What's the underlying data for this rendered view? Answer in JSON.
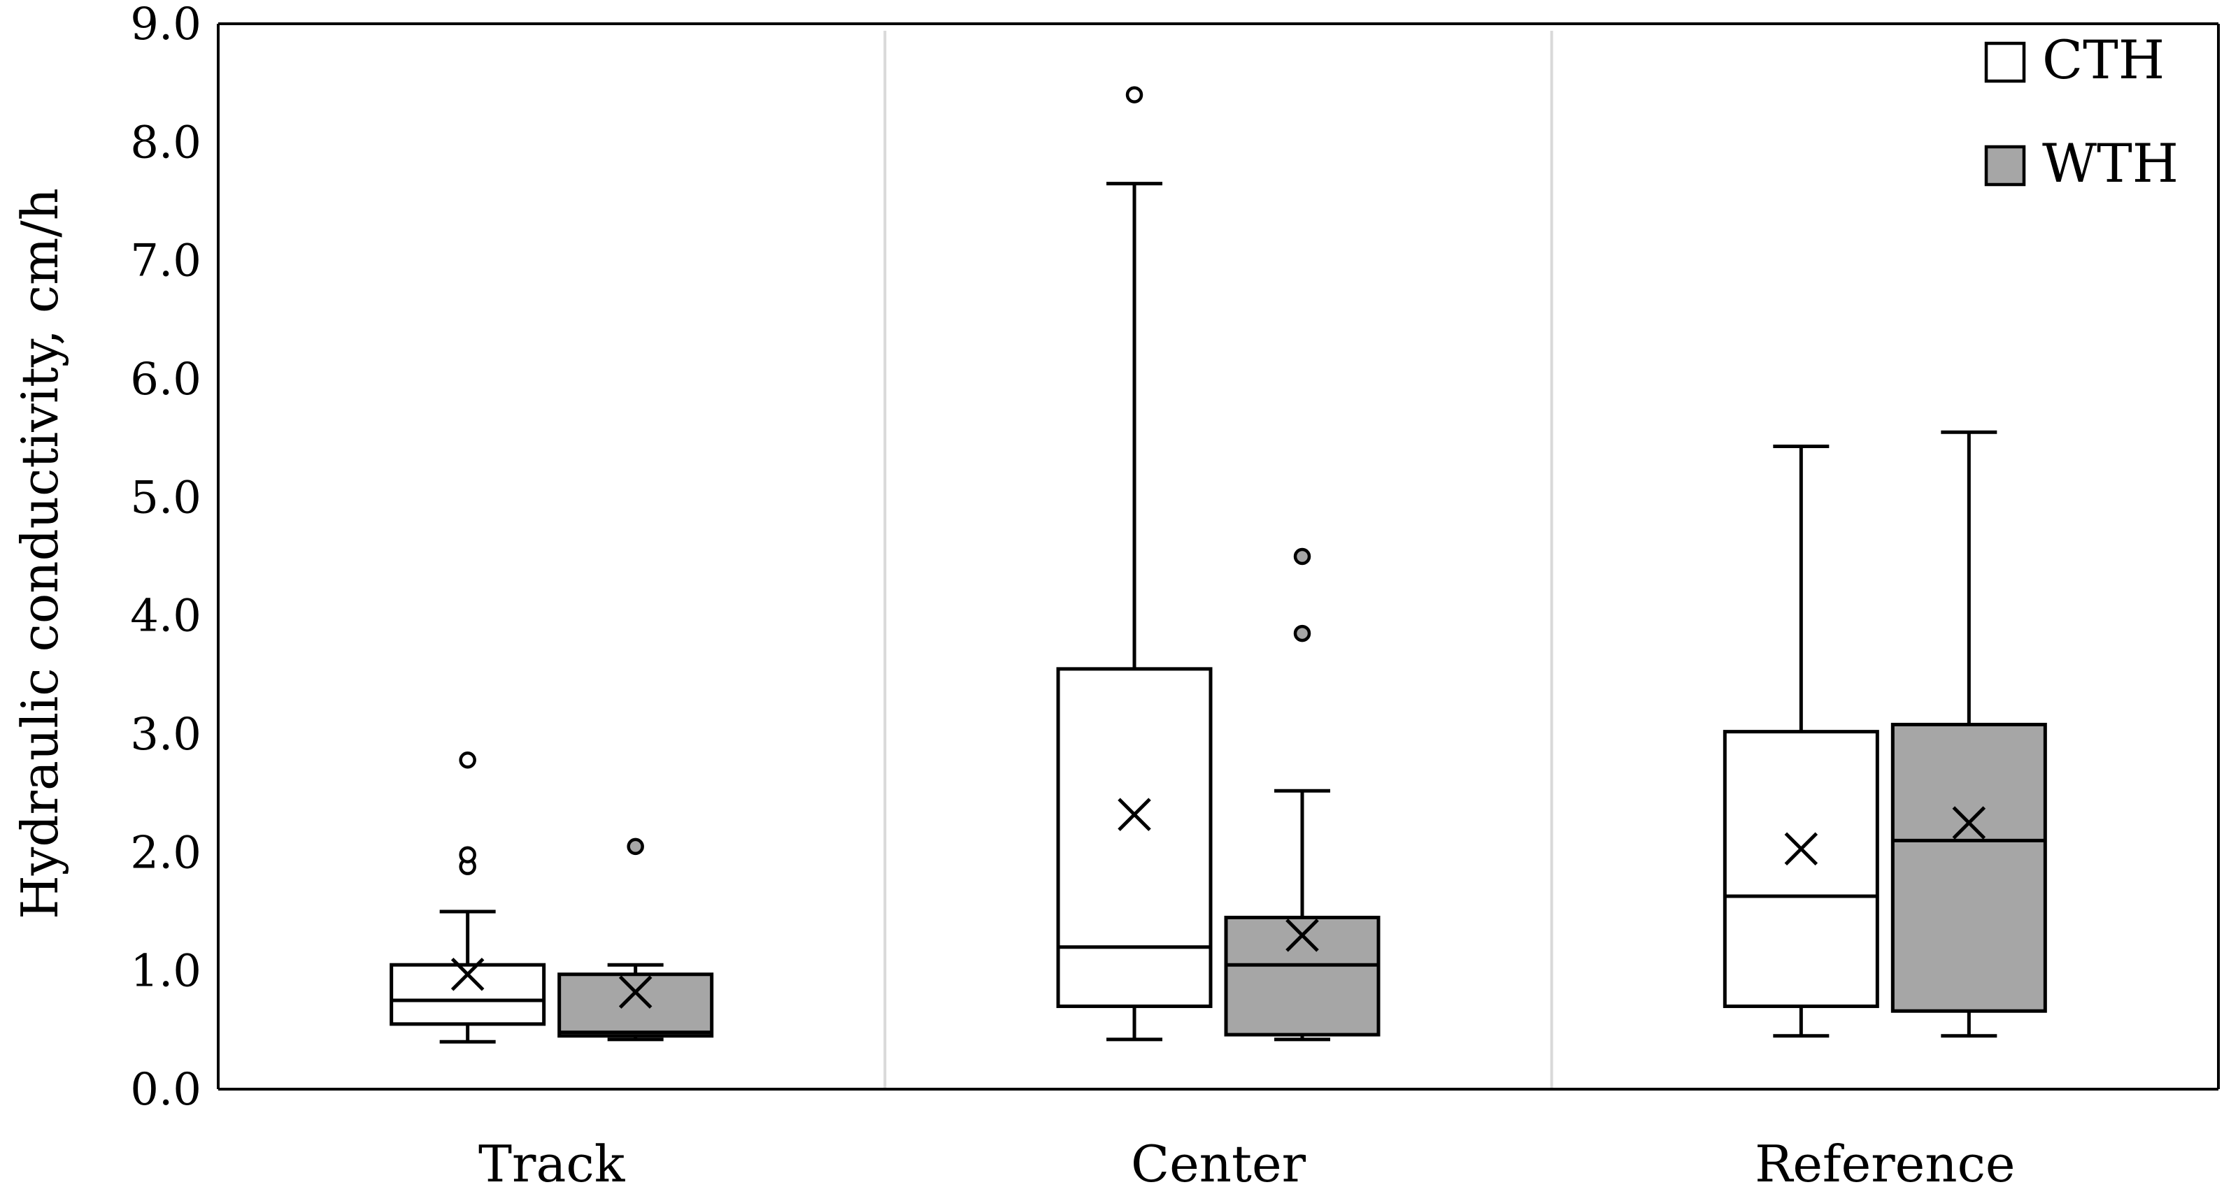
{
  "chart_data": {
    "type": "box",
    "title": "",
    "xlabel": "",
    "ylabel": "Hydraulic conductivity, cm/h",
    "ylim": [
      0,
      9
    ],
    "yticks": [
      "0.0",
      "1.0",
      "2.0",
      "3.0",
      "4.0",
      "5.0",
      "6.0",
      "7.0",
      "8.0",
      "9.0"
    ],
    "categories": [
      "Track",
      "Center",
      "Reference"
    ],
    "legend_position": "top-right",
    "grid": false,
    "series": [
      {
        "name": "CTH",
        "fill": "#ffffff",
        "boxes": [
          {
            "min": 0.4,
            "q1": 0.55,
            "median": 0.75,
            "q3": 1.05,
            "max": 1.5,
            "mean": 0.97,
            "outliers": [
              1.88,
              1.98,
              2.78
            ]
          },
          {
            "min": 0.42,
            "q1": 0.7,
            "median": 1.2,
            "q3": 3.55,
            "max": 7.65,
            "mean": 2.32,
            "outliers": [
              8.4
            ]
          },
          {
            "min": 0.45,
            "q1": 0.7,
            "median": 1.63,
            "q3": 3.02,
            "max": 5.43,
            "mean": 2.03,
            "outliers": []
          }
        ]
      },
      {
        "name": "WTH",
        "fill": "#a6a6a6",
        "boxes": [
          {
            "min": 0.42,
            "q1": 0.45,
            "median": 0.48,
            "q3": 0.97,
            "max": 1.05,
            "mean": 0.82,
            "outliers": [
              2.05
            ]
          },
          {
            "min": 0.42,
            "q1": 0.46,
            "median": 1.05,
            "q3": 1.45,
            "max": 2.52,
            "mean": 1.3,
            "outliers": [
              3.85,
              4.5
            ]
          },
          {
            "min": 0.45,
            "q1": 0.66,
            "median": 2.1,
            "q3": 3.08,
            "max": 5.55,
            "mean": 2.25,
            "outliers": []
          }
        ]
      }
    ]
  }
}
